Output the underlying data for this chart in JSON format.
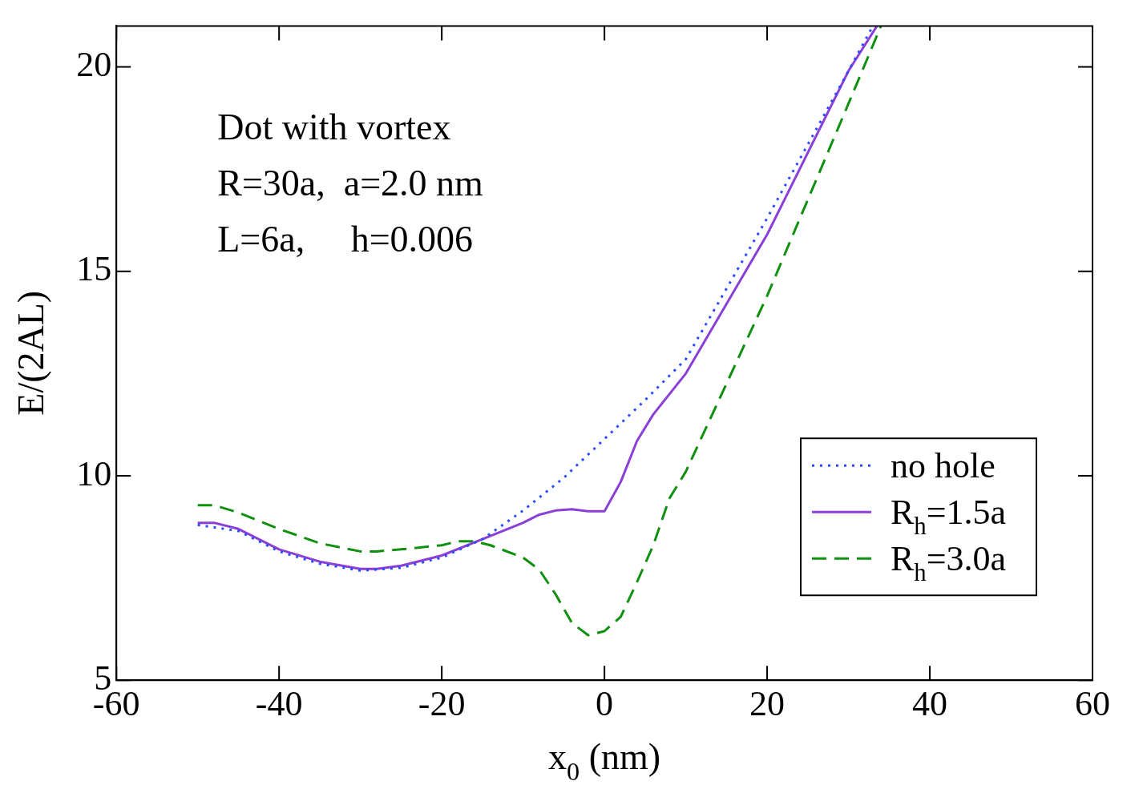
{
  "chart_data": {
    "type": "line",
    "xlabel": "x$_{0}$ (nm)",
    "ylabel": "E/(2AL)",
    "xlim": [
      -60,
      60
    ],
    "ylim": [
      5,
      21
    ],
    "xticks": [
      -60,
      -40,
      -20,
      0,
      20,
      40,
      60
    ],
    "yticks": [
      5,
      10,
      15,
      20
    ],
    "grid": false,
    "legend": "bottom right",
    "marker": "none",
    "annotations": [
      "Dot with vortex",
      "R=30a,  a=2.0 nm",
      "L=6a,     h=0.006"
    ],
    "series": [
      {
        "name": "no hole",
        "color": "#2a4bff",
        "line_style": "dotted",
        "x": [
          -50,
          -45,
          -40,
          -35,
          -30,
          -25,
          -20,
          -15,
          -10,
          -5,
          0,
          5,
          10,
          20,
          30,
          33
        ],
        "values": [
          8.8,
          8.65,
          8.15,
          7.85,
          7.68,
          7.75,
          8.0,
          8.45,
          9.15,
          9.95,
          10.9,
          11.85,
          12.85,
          16.3,
          19.9,
          21.0
        ]
      },
      {
        "name": "R$_{h}$=1.5a",
        "color": "#8a3fd6",
        "line_style": "solid",
        "x": [
          -50,
          -48,
          -45,
          -40,
          -35,
          -30,
          -28,
          -25,
          -20,
          -15,
          -10,
          -8,
          -6,
          -4,
          -2,
          0,
          2,
          4,
          6,
          8,
          10,
          20,
          30,
          33.5
        ],
        "values": [
          8.85,
          8.85,
          8.7,
          8.2,
          7.9,
          7.72,
          7.72,
          7.8,
          8.05,
          8.45,
          8.85,
          9.05,
          9.15,
          9.18,
          9.13,
          9.13,
          9.85,
          10.85,
          11.5,
          12.0,
          12.5,
          15.9,
          19.9,
          21.0
        ]
      },
      {
        "name": "R$_{h}$=3.0a",
        "color": "#109010",
        "line_style": "dashed",
        "x": [
          -50,
          -48,
          -45,
          -40,
          -35,
          -30,
          -28,
          -25,
          -20,
          -18,
          -16,
          -14,
          -10,
          -8,
          -6,
          -4,
          -2,
          0,
          2,
          4,
          6,
          8,
          10,
          20,
          30,
          34
        ],
        "values": [
          9.28,
          9.28,
          9.1,
          8.7,
          8.35,
          8.15,
          8.15,
          8.2,
          8.3,
          8.4,
          8.4,
          8.3,
          8.0,
          7.7,
          7.1,
          6.4,
          6.1,
          6.2,
          6.55,
          7.4,
          8.3,
          9.45,
          10.1,
          14.4,
          19.1,
          21.0
        ]
      }
    ]
  }
}
